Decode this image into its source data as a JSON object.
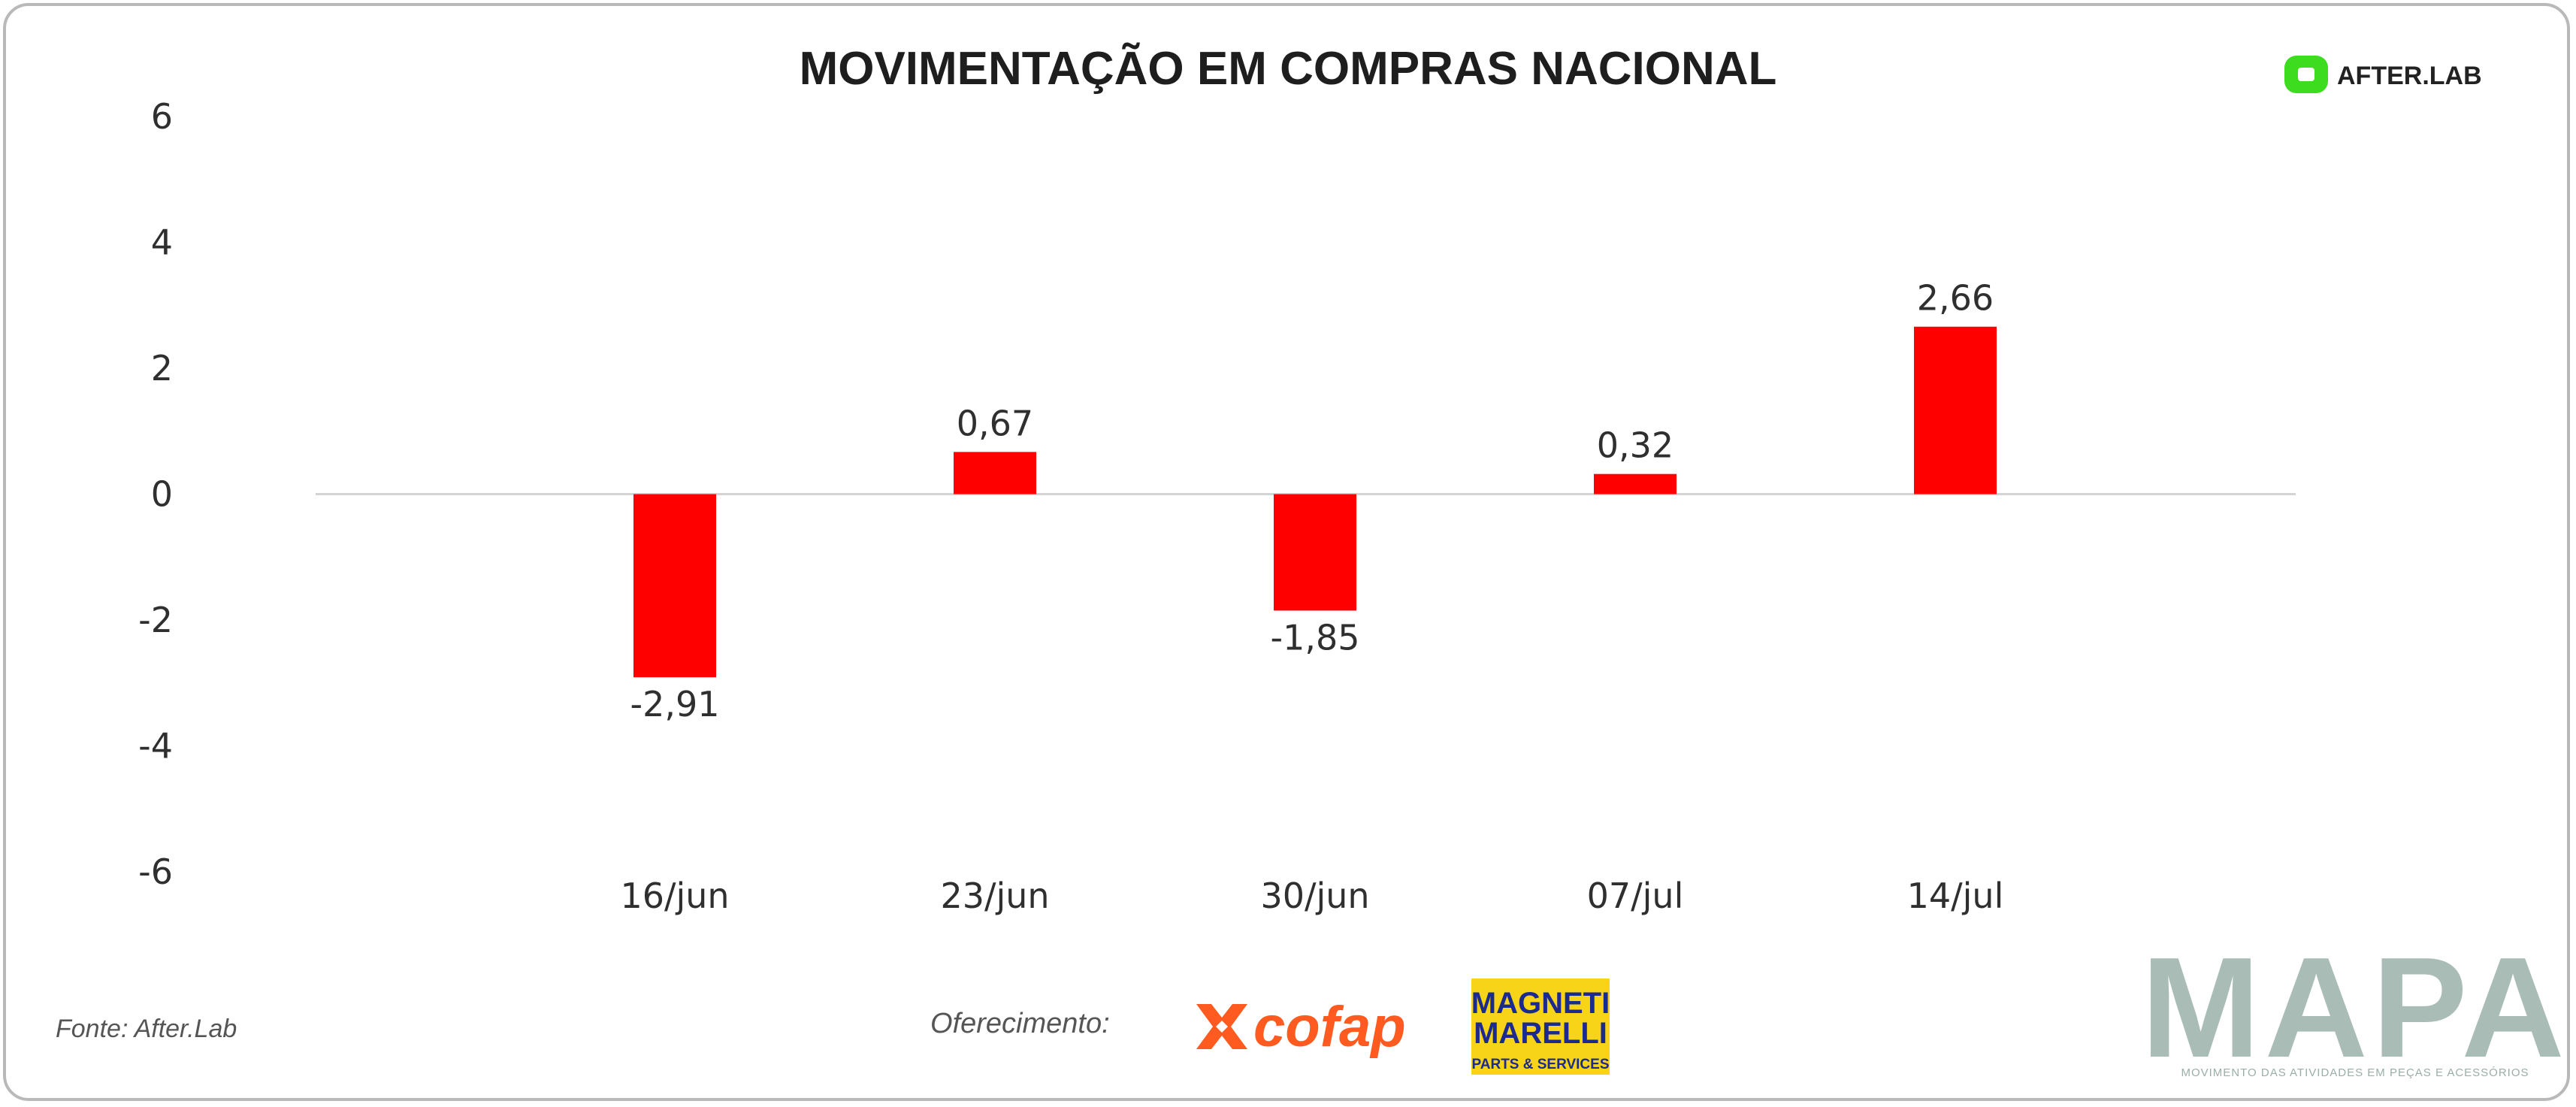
{
  "branding": {
    "afterlab_label": "AFTER.LAB",
    "source_label": "Fonte: After.Lab",
    "sponsor_label": "Oferecimento:",
    "cofap_label": "cofap",
    "magneti_line1": "MAGNETI",
    "magneti_line2": "MARELLI",
    "magneti_sub": "PARTS & SERVICES",
    "mapa_label": "MAPA",
    "mapa_tagline": "MOVIMENTO DAS ATIVIDADES EM PEÇAS E ACESSÓRIOS",
    "colors": {
      "afterlab_green": "#3ddc1f",
      "cofap_orange": "#ff5a1f",
      "magneti_yellow": "#f7d418",
      "magneti_blue": "#1b2a8f",
      "mapa_gray": "#a9bdb6"
    }
  },
  "chart_data": {
    "type": "bar",
    "title": "MOVIMENTAÇÃO EM COMPRAS NACIONAL",
    "categories": [
      "16/jun",
      "23/jun",
      "30/jun",
      "07/jul",
      "14/jul"
    ],
    "values": [
      -2.91,
      0.67,
      -1.85,
      0.32,
      2.66
    ],
    "value_labels": [
      "-2,91",
      "0,67",
      "-1,85",
      "0,32",
      "2,66"
    ],
    "y_ticks": [
      6,
      4,
      2,
      0,
      -2,
      -4,
      -6
    ],
    "y_tick_labels": [
      "6",
      "4",
      "2",
      "0",
      "-2",
      "-4",
      "-6"
    ],
    "ylim": [
      -6,
      6
    ],
    "bar_color": "#ff0000",
    "grid": false,
    "legend": "none"
  }
}
